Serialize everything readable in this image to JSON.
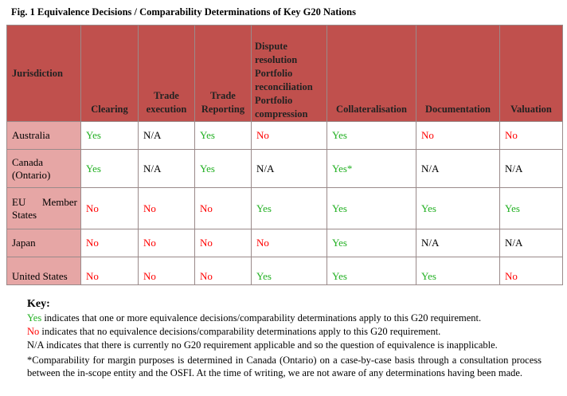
{
  "figure": {
    "title": "Fig. 1 Equivalence Decisions / Comparability Determinations of Key G20 Nations"
  },
  "table": {
    "headers": {
      "jurisdiction": "Jurisdiction",
      "clearing": "Clearing",
      "trade_execution": [
        "Trade",
        "execution"
      ],
      "trade_reporting": [
        "Trade",
        "Reporting"
      ],
      "dispute": [
        "Dispute",
        "resolution",
        "Portfolio",
        "reconciliation",
        "Portfolio",
        "compression"
      ],
      "collateralisation": "Collateralisation",
      "documentation": "Documentation",
      "valuation": "Valuation"
    },
    "rows": [
      {
        "jurisdiction": [
          "Australia"
        ],
        "cells": [
          {
            "text": "Yes",
            "status": "yes"
          },
          {
            "text": "N/A",
            "status": "na"
          },
          {
            "text": "Yes",
            "status": "yes"
          },
          {
            "text": "No",
            "status": "no"
          },
          {
            "text": "Yes",
            "status": "yes"
          },
          {
            "text": "No",
            "status": "no"
          },
          {
            "text": "No",
            "status": "no"
          }
        ]
      },
      {
        "jurisdiction": [
          "Canada",
          "(Ontario)"
        ],
        "cells": [
          {
            "text": "Yes",
            "status": "yes"
          },
          {
            "text": "N/A",
            "status": "na"
          },
          {
            "text": "Yes",
            "status": "yes"
          },
          {
            "text": "N/A",
            "status": "na"
          },
          {
            "text": "Yes*",
            "status": "yes"
          },
          {
            "text": "N/A",
            "status": "na"
          },
          {
            "text": "N/A",
            "status": "na"
          }
        ]
      },
      {
        "jurisdiction": [
          "EU",
          "Member",
          "States"
        ],
        "cells": [
          {
            "text": "No",
            "status": "no"
          },
          {
            "text": "No",
            "status": "no"
          },
          {
            "text": "No",
            "status": "no"
          },
          {
            "text": "Yes",
            "status": "yes"
          },
          {
            "text": "Yes",
            "status": "yes"
          },
          {
            "text": "Yes",
            "status": "yes"
          },
          {
            "text": "Yes",
            "status": "yes"
          }
        ]
      },
      {
        "jurisdiction": [
          "Japan"
        ],
        "cells": [
          {
            "text": "No",
            "status": "no"
          },
          {
            "text": "No",
            "status": "no"
          },
          {
            "text": "No",
            "status": "no"
          },
          {
            "text": "No",
            "status": "no"
          },
          {
            "text": "Yes",
            "status": "yes"
          },
          {
            "text": "N/A",
            "status": "na"
          },
          {
            "text": "N/A",
            "status": "na"
          }
        ]
      },
      {
        "jurisdiction": [
          "United States"
        ],
        "cells": [
          {
            "text": "No",
            "status": "no"
          },
          {
            "text": "No",
            "status": "no"
          },
          {
            "text": "No",
            "status": "no"
          },
          {
            "text": "Yes",
            "status": "yes"
          },
          {
            "text": "Yes",
            "status": "yes"
          },
          {
            "text": "Yes",
            "status": "yes"
          },
          {
            "text": "No",
            "status": "no"
          }
        ]
      }
    ]
  },
  "key": {
    "title": "Key:",
    "yes_word": "Yes",
    "yes_text": " indicates that one or more equivalence decisions/comparability determinations apply to this G20 requirement.",
    "no_word": "No",
    "no_text": " indicates that no equivalence decisions/comparability determinations apply to this G20 requirement.",
    "na_text": "N/A indicates that there is currently no G20 requirement applicable and so the question of equivalence is inapplicable.",
    "footnote": "*Comparability for margin purposes is determined in Canada (Ontario) on a case-by-case basis through a consultation process between the in-scope entity and the OSFI. At the time of writing, we are not aware of any determinations having been made."
  },
  "colors": {
    "header_bg": "#c0504d",
    "jurisdiction_bg": "#e6a6a5",
    "yes": "#22b022",
    "no": "#ff0000"
  }
}
